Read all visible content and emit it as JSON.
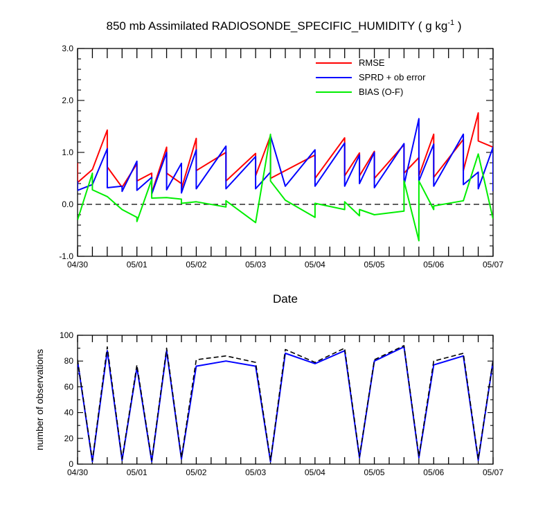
{
  "chart_data": [
    {
      "type": "line",
      "title": "850 mb Assimilated RADIOSONDE_SPECIFIC_HUMIDITY ( g kg",
      "title_sup": "-1",
      "title_end": " )",
      "xlabel": "Date",
      "ylabel": "",
      "xlim": [
        0,
        7
      ],
      "ylim": [
        -1.0,
        3.0
      ],
      "yticks": [
        "-1.0",
        "0.0",
        "1.0",
        "2.0",
        "3.0"
      ],
      "ytick_values": [
        -1.0,
        0.0,
        1.0,
        2.0,
        3.0
      ],
      "xtick_labels": [
        "04/30",
        "05/01",
        "05/02",
        "05/03",
        "05/04",
        "05/05",
        "05/06",
        "05/07"
      ],
      "zero_line": "dashed black",
      "legend_position": "top-right",
      "series": [
        {
          "name": "RMSE",
          "color": "#ff0000",
          "x": [
            0,
            0,
            0.25,
            0.5,
            0.5,
            0.75,
            1.0,
            1.0,
            1.25,
            1.25,
            1.5,
            1.5,
            1.75,
            1.75,
            2.0,
            2.0,
            2.5,
            2.5,
            3.0,
            3.0,
            3.25,
            3.25,
            4.0,
            4.0,
            4.5,
            4.5,
            4.75,
            4.75,
            5.0,
            5.0,
            5.5,
            5.5,
            5.75,
            5.75,
            6.0,
            6.0,
            6.5,
            6.5,
            6.75,
            6.75,
            7.0,
            7.0
          ],
          "values": [
            0.8,
            0.42,
            0.67,
            1.43,
            0.72,
            0.33,
            0.78,
            0.45,
            0.6,
            0.22,
            1.1,
            0.6,
            0.4,
            0.3,
            1.27,
            0.65,
            1.0,
            0.45,
            0.98,
            0.55,
            1.32,
            0.5,
            0.95,
            0.5,
            1.28,
            0.55,
            0.99,
            0.55,
            1.02,
            0.5,
            1.15,
            0.6,
            0.9,
            0.55,
            1.35,
            0.52,
            1.25,
            0.65,
            1.76,
            1.22,
            1.1,
            0.25
          ]
        },
        {
          "name": "SPRD + ob error",
          "color": "#0000ff",
          "x": [
            0,
            0,
            0.25,
            0.5,
            0.5,
            0.75,
            0.75,
            1.0,
            1.0,
            1.25,
            1.25,
            1.5,
            1.5,
            1.75,
            1.75,
            2.0,
            2.0,
            2.5,
            2.5,
            3.0,
            3.0,
            3.25,
            3.25,
            3.5,
            3.5,
            4.0,
            4.0,
            4.5,
            4.5,
            4.75,
            4.75,
            5.0,
            5.0,
            5.5,
            5.5,
            5.75,
            5.75,
            6.0,
            6.0,
            6.5,
            6.5,
            6.75,
            6.75,
            7.0,
            7.0
          ],
          "values": [
            0.45,
            0.27,
            0.38,
            1.07,
            0.32,
            0.35,
            0.25,
            0.83,
            0.27,
            0.52,
            0.2,
            1.0,
            0.28,
            0.79,
            0.22,
            1.05,
            0.3,
            1.12,
            0.3,
            0.92,
            0.3,
            0.62,
            1.32,
            0.35,
            0.35,
            1.05,
            0.35,
            1.18,
            0.35,
            0.95,
            0.4,
            1.0,
            0.32,
            1.17,
            0.37,
            1.65,
            0.45,
            1.16,
            0.35,
            1.35,
            0.38,
            0.62,
            0.3,
            1.1,
            0.25
          ]
        },
        {
          "name": "BIAS (O-F)",
          "color": "#00ee00",
          "x": [
            0,
            0.25,
            0.25,
            0.5,
            0.75,
            1.0,
            1.0,
            1.25,
            1.25,
            1.5,
            1.75,
            1.75,
            2.0,
            2.5,
            2.5,
            3.0,
            3.25,
            3.25,
            3.5,
            4.0,
            4.0,
            4.5,
            4.5,
            4.75,
            4.75,
            5.0,
            5.5,
            5.5,
            5.75,
            5.75,
            6.0,
            6.0,
            6.5,
            6.75,
            7.0
          ],
          "values": [
            -0.3,
            0.6,
            0.28,
            0.15,
            -0.1,
            -0.25,
            -0.33,
            0.48,
            0.12,
            0.13,
            0.1,
            0.02,
            0.05,
            -0.05,
            0.07,
            -0.35,
            1.35,
            0.45,
            0.08,
            -0.25,
            0.02,
            -0.1,
            0.05,
            -0.22,
            -0.1,
            -0.2,
            -0.13,
            0.45,
            -0.7,
            0.45,
            -0.1,
            -0.03,
            0.07,
            0.97,
            -0.28
          ]
        }
      ]
    },
    {
      "type": "line",
      "title": "",
      "xlabel": "",
      "ylabel": "number of observations",
      "xlim": [
        0,
        7
      ],
      "ylim": [
        0,
        100
      ],
      "yticks": [
        "0",
        "20",
        "40",
        "60",
        "80",
        "100"
      ],
      "ytick_values": [
        0,
        20,
        40,
        60,
        80,
        100
      ],
      "xtick_labels": [
        "04/30",
        "05/01",
        "05/02",
        "05/03",
        "05/04",
        "05/05",
        "05/06",
        "05/07"
      ],
      "series": [
        {
          "color": "#0000ff",
          "style": "solid",
          "x": [
            0,
            0.25,
            0.5,
            0.75,
            1.0,
            1.25,
            1.5,
            1.75,
            2.0,
            2.5,
            3.0,
            3.25,
            3.5,
            4.0,
            4.5,
            4.75,
            5.0,
            5.5,
            5.75,
            6.0,
            6.5,
            6.75,
            7.0
          ],
          "values": [
            80,
            2,
            88,
            3,
            75,
            2,
            88,
            4,
            76,
            80,
            76,
            2,
            86,
            78,
            88,
            5,
            80,
            91,
            5,
            77,
            84,
            3,
            80
          ]
        },
        {
          "color": "#000000",
          "style": "dashed",
          "x": [
            0,
            0.25,
            0.5,
            0.75,
            1.0,
            1.25,
            1.5,
            1.75,
            2.0,
            2.5,
            3.0,
            3.25,
            3.5,
            4.0,
            4.5,
            4.75,
            5.0,
            5.5,
            5.75,
            6.0,
            6.5,
            6.75,
            7.0
          ],
          "values": [
            81,
            3,
            91,
            4,
            77,
            3,
            90,
            5,
            81,
            84,
            79,
            3,
            89,
            79,
            90,
            6,
            81,
            92,
            6,
            80,
            86,
            4,
            81
          ]
        }
      ]
    }
  ]
}
